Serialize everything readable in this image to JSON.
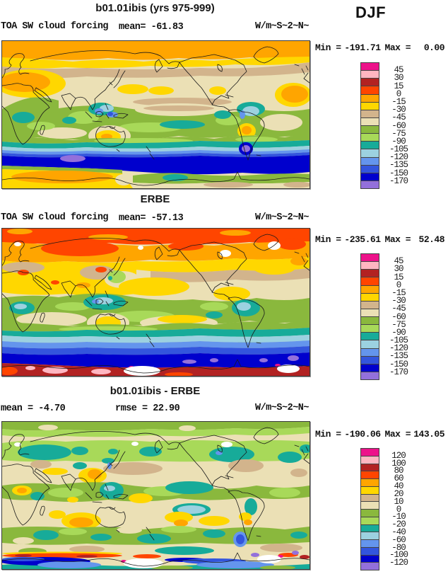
{
  "page": {
    "season": "DJF"
  },
  "colorbar_palette": [
    "#ED128A",
    "#FFB6C1",
    "#B22222",
    "#FF4500",
    "#FFA500",
    "#FFD700",
    "#D2B48C",
    "#EBE0B5",
    "#8AB83D",
    "#A8D959",
    "#17AB99",
    "#9CD1E0",
    "#6495ED",
    "#3355DD",
    "#0000CD",
    "#9370DB"
  ],
  "panels": [
    {
      "title": "b01.01ibis (yrs 975-999)",
      "variable": "TOA SW cloud forcing",
      "mean_label": "mean=",
      "mean_value": "-61.83",
      "units": "W/m~S~2~N~",
      "min_label": "Min =",
      "min_value": "-191.71",
      "max_label": "Max =",
      "max_value": "0.00",
      "legend_labels": [
        "45",
        "30",
        "15",
        "0",
        "-15",
        "-30",
        "-45",
        "-60",
        "-75",
        "-90",
        "-105",
        "-120",
        "-135",
        "-150",
        "-170"
      ]
    },
    {
      "title": "ERBE",
      "variable": "TOA SW cloud forcing",
      "mean_label": "mean=",
      "mean_value": "-57.13",
      "units": "W/m~S~2~N~",
      "min_label": "Min =",
      "min_value": "-235.61",
      "max_label": "Max =",
      "max_value": "52.48",
      "legend_labels": [
        "45",
        "30",
        "15",
        "0",
        "-15",
        "-30",
        "-45",
        "-60",
        "-75",
        "-90",
        "-105",
        "-120",
        "-135",
        "-150",
        "-170"
      ]
    },
    {
      "title": "b01.01ibis - ERBE",
      "mean_label": "mean =",
      "mean_value": "-4.70",
      "rmse_label": "rmse =",
      "rmse_value": "22.90",
      "units": "W/m~S~2~N~",
      "min_label": "Min =",
      "min_value": "-190.06",
      "max_label": "Max =",
      "max_value": "143.05",
      "legend_labels": [
        "120",
        "100",
        "80",
        "60",
        "40",
        "20",
        "10",
        "0",
        "-10",
        "-20",
        "-40",
        "-60",
        "-80",
        "-100",
        "-120"
      ]
    }
  ],
  "chart_data": [
    {
      "type": "heatmap",
      "subtype": "filled-contour global lat-lon map (Pacific-centered, lon 0-360E)",
      "title": "b01.01ibis (yrs 975-999)",
      "variable": "TOA SW cloud forcing",
      "season": "DJF",
      "units_literal": "W/m~S~2~N~",
      "units_meaning": "W/m^2",
      "stats": {
        "mean": -61.83,
        "min": -191.71,
        "max": 0.0
      },
      "contour_levels": [
        45,
        30,
        15,
        0,
        -15,
        -30,
        -45,
        -60,
        -75,
        -90,
        -105,
        -120,
        -135,
        -150,
        -170
      ],
      "palette_top_to_bottom": [
        "#ED128A",
        "#FFB6C1",
        "#B22222",
        "#FF4500",
        "#FFA500",
        "#FFD700",
        "#D2B48C",
        "#EBE0B5",
        "#8AB83D",
        "#A8D959",
        "#17AB99",
        "#9CD1E0",
        "#6495ED",
        "#3355DD",
        "#0000CD",
        "#9370DB"
      ],
      "zonal_structure": "orange (0 to -15) at high NH latitudes, yellow then tan/beige (-30 to -60) midlatitudes, green/teal/blue (-60 to -135) in tropical convection and SH storm track, dark blue band (-150 to -170) ~55-65S with purple (<-170) patches, yellow/orange over Antarctica"
    },
    {
      "type": "heatmap",
      "subtype": "filled-contour global lat-lon map (Pacific-centered, lon 0-360E)",
      "title": "ERBE",
      "variable": "TOA SW cloud forcing",
      "season": "DJF",
      "units_literal": "W/m~S~2~N~",
      "units_meaning": "W/m^2",
      "stats": {
        "mean": -57.13,
        "min": -235.61,
        "max": 52.48
      },
      "contour_levels": [
        45,
        30,
        15,
        0,
        -15,
        -30,
        -45,
        -60,
        -75,
        -90,
        -105,
        -120,
        -135,
        -150,
        -170
      ],
      "palette_top_to_bottom": [
        "#ED128A",
        "#FFB6C1",
        "#B22222",
        "#FF4500",
        "#FFA500",
        "#FFD700",
        "#D2B48C",
        "#EBE0B5",
        "#8AB83D",
        "#A8D959",
        "#17AB99",
        "#9CD1E0",
        "#6495ED",
        "#3355DD",
        "#0000CD",
        "#9370DB"
      ],
      "zonal_structure": "red-orange (0 to 15) at high NH latitudes, orange/yellow subtropics, tan/beige midlatitudes, green/teal tropics, blue to dark blue SH storm track, dark red (15-30, positive forcing) over Antarctica with pink maxima and white missing-data ice shelves"
    },
    {
      "type": "heatmap",
      "subtype": "difference map, model minus observations",
      "title": "b01.01ibis - ERBE",
      "season": "DJF",
      "units_literal": "W/m~S~2~N~",
      "units_meaning": "W/m^2",
      "stats": {
        "mean": -4.7,
        "rmse": 22.9,
        "min": -190.06,
        "max": 143.05
      },
      "contour_levels": [
        120,
        100,
        80,
        60,
        40,
        20,
        10,
        0,
        -10,
        -20,
        -40,
        -60,
        -80,
        -100,
        -120
      ],
      "palette_top_to_bottom": [
        "#ED128A",
        "#FFB6C1",
        "#B22222",
        "#FF4500",
        "#FFA500",
        "#FFD700",
        "#D2B48C",
        "#EBE0B5",
        "#8AB83D",
        "#A8D959",
        "#17AB99",
        "#9CD1E0",
        "#6495ED",
        "#3355DD",
        "#0000CD",
        "#9370DB"
      ],
      "zonal_structure": "mottled beige/green (0 to -20) with teal negative biases, yellow/orange positive biases near Japan, subtropical oceans and Australia, strong red positive and blue negative dipole along the Antarctic coast with white missing-data ice shelves"
    }
  ]
}
